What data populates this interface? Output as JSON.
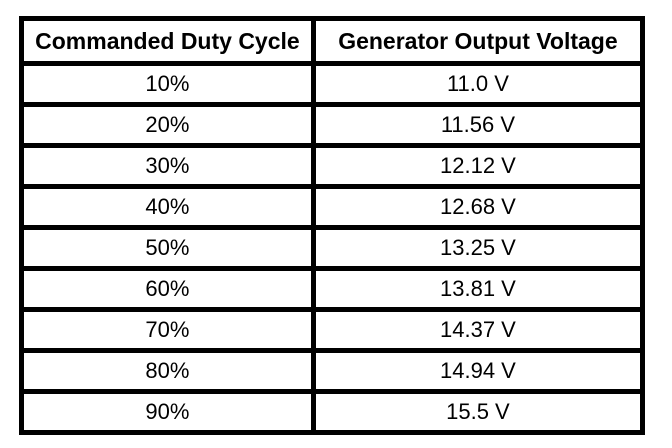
{
  "table": {
    "columns": [
      "Commanded Duty Cycle",
      "Generator Output Voltage"
    ],
    "rows": [
      [
        "10%",
        "11.0 V"
      ],
      [
        "20%",
        "11.56 V"
      ],
      [
        "30%",
        "12.12 V"
      ],
      [
        "40%",
        "12.68 V"
      ],
      [
        "50%",
        "13.25 V"
      ],
      [
        "60%",
        "13.81 V"
      ],
      [
        "70%",
        "14.37 V"
      ],
      [
        "80%",
        "14.94 V"
      ],
      [
        "90%",
        "15.5 V"
      ]
    ]
  },
  "colors": {
    "border": "#000000",
    "background": "#ffffff",
    "text": "#000000"
  },
  "chart_data": {
    "type": "table",
    "title": "",
    "columns": [
      "Commanded Duty Cycle",
      "Generator Output Voltage"
    ],
    "duty_cycle_percent": [
      10,
      20,
      30,
      40,
      50,
      60,
      70,
      80,
      90
    ],
    "output_voltage_v": [
      11.0,
      11.56,
      12.12,
      12.68,
      13.25,
      13.81,
      14.37,
      14.94,
      15.5
    ]
  }
}
